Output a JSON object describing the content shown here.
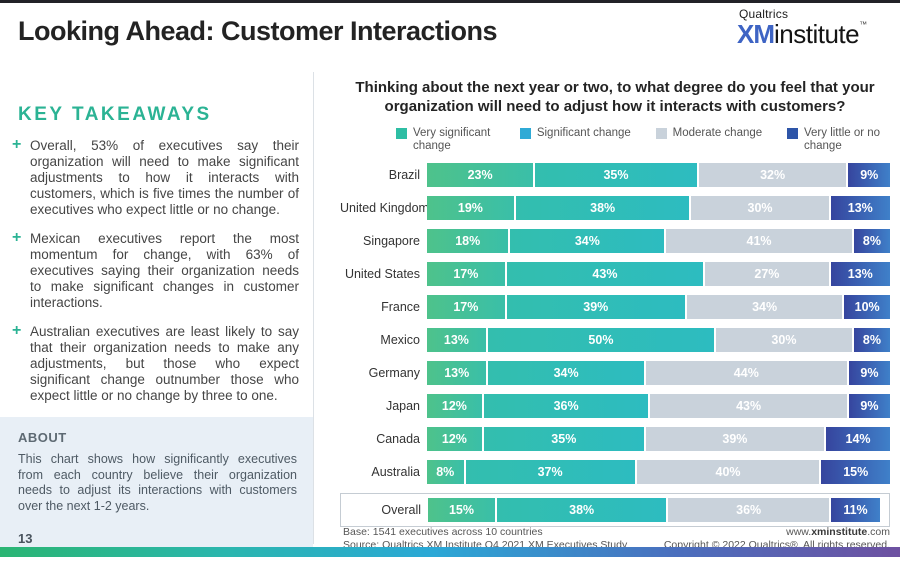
{
  "header": {
    "title": "Looking Ahead: Customer Interactions",
    "logo": {
      "brand": "Qualtrics",
      "xm": "XM",
      "institute": "institute",
      "tm": "™"
    }
  },
  "sidebar": {
    "heading": "KEY TAKEAWAYS",
    "bullet_glyph": "+",
    "takeaways": [
      "Overall, 53% of executives say their organization will need to make significant adjustments to how it interacts with customers, which is five times the number of executives who expect little or no change.",
      "Mexican executives report the most momentum for change, with 63% of executives saying their organization needs to make significant changes in customer interactions.",
      "Australian executives are least likely to say that their organization needs to make any adjustments, but those who expect significant change outnumber those who expect little or no change by three to one."
    ],
    "about": {
      "heading": "ABOUT",
      "text": "This chart shows how significantly executives from each country believe their organization needs to adjust its interactions with customers over the next 1-2 years."
    },
    "page_number": "13"
  },
  "chart_data": {
    "type": "bar",
    "orientation": "horizontal",
    "stacked": true,
    "unit": "%",
    "title": "Thinking about the next year or two, to what degree do you feel that your organization will need to adjust how it interacts with customers?",
    "legend_position": "top",
    "categories": [
      "Brazil",
      "United Kingdom",
      "Singapore",
      "United States",
      "France",
      "Mexico",
      "Germany",
      "Japan",
      "Canada",
      "Australia",
      "Overall"
    ],
    "series": [
      {
        "name": "Very significant change",
        "values": [
          23,
          19,
          18,
          17,
          17,
          13,
          13,
          12,
          12,
          8,
          15
        ]
      },
      {
        "name": "Significant change",
        "values": [
          35,
          38,
          34,
          43,
          39,
          50,
          34,
          36,
          35,
          37,
          38
        ]
      },
      {
        "name": "Moderate change",
        "values": [
          32,
          30,
          41,
          27,
          34,
          30,
          44,
          43,
          39,
          40,
          36
        ]
      },
      {
        "name": "Very little or no change",
        "values": [
          9,
          13,
          8,
          13,
          10,
          8,
          9,
          9,
          14,
          15,
          11
        ]
      }
    ],
    "highlighted_category": "Overall"
  },
  "footer": {
    "base": "Base: 1541 executives across 10 countries",
    "source": "Source: Qualtrics XM Institute Q4 2021 XM Executives Study",
    "website_prefix": "www.",
    "website_bold": "xminstitute",
    "website_suffix": ".com",
    "copyright": "Copyright © 2022 Qualtrics®. All rights reserved."
  },
  "colors": {
    "accent_teal": "#2BB394",
    "xm_blue": "#3E64C4",
    "about_bg": "#E8EFF6",
    "segments": [
      "linear-gradient(90deg,#4EC28B,#3ABFA8)",
      "linear-gradient(90deg,#33BEAE,#2DBCC0)",
      "#C9D2DB",
      "linear-gradient(90deg,#36459E,#3F80C9)"
    ],
    "legend": [
      "#2EBEA4",
      "#2FAAD6",
      "#C9D2DB",
      "#2E55A8"
    ],
    "bottom_gradient": "linear-gradient(90deg,#2BB573 0%,#2BB6AE 25%,#2BA8D6 48%,#4A6FBE 75%,#6E51A1 100%)"
  }
}
